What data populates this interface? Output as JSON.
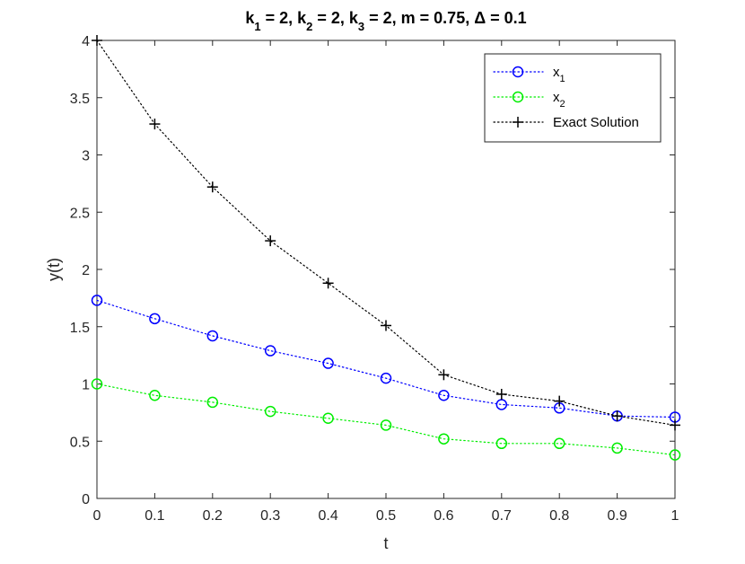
{
  "chart_data": {
    "type": "line",
    "title": {
      "parts": [
        {
          "t": "k"
        },
        {
          "t": "1",
          "sub": true
        },
        {
          "t": " = 2, k"
        },
        {
          "t": "2",
          "sub": true
        },
        {
          "t": " = 2, k"
        },
        {
          "t": "3",
          "sub": true
        },
        {
          "t": " = 2, m = 0.75, Δ = 0.1"
        }
      ]
    },
    "xlabel": "t",
    "ylabel": "y(t)",
    "xlim": [
      0,
      1
    ],
    "ylim": [
      0,
      4
    ],
    "xticks": [
      "0",
      "0.1",
      "0.2",
      "0.3",
      "0.4",
      "0.5",
      "0.6",
      "0.7",
      "0.8",
      "0.9",
      "1"
    ],
    "yticks": [
      "0",
      "0.5",
      "1",
      "1.5",
      "2",
      "2.5",
      "3",
      "3.5",
      "4"
    ],
    "grid": false,
    "legend_position": "top-right",
    "x": [
      0,
      0.1,
      0.2,
      0.3,
      0.4,
      0.5,
      0.6,
      0.7,
      0.8,
      0.9,
      1
    ],
    "series": [
      {
        "name": "x",
        "name_sub": "1",
        "color": "#0000ff",
        "marker": "circle",
        "line": "dotted",
        "values": [
          1.73,
          1.57,
          1.42,
          1.29,
          1.18,
          1.05,
          0.9,
          0.82,
          0.79,
          0.72,
          0.71
        ]
      },
      {
        "name": "x",
        "name_sub": "2",
        "color": "#00ee00",
        "marker": "circle",
        "line": "dotted",
        "values": [
          1.0,
          0.9,
          0.84,
          0.76,
          0.7,
          0.64,
          0.52,
          0.48,
          0.48,
          0.44,
          0.38
        ]
      },
      {
        "name": "Exact Solution",
        "color": "#000000",
        "marker": "plus",
        "line": "dotted",
        "values": [
          4.0,
          3.27,
          2.72,
          2.25,
          1.88,
          1.51,
          1.08,
          0.91,
          0.85,
          0.72,
          0.64
        ]
      }
    ]
  }
}
